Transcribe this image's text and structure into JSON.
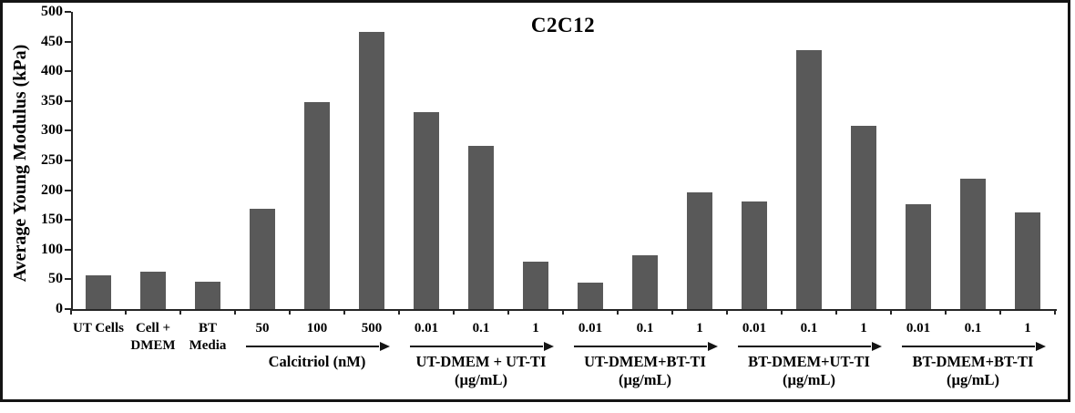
{
  "chart_data": {
    "type": "bar",
    "title": "C2C12",
    "xlabel": "",
    "ylabel": "Average Young Modulus (kPa)",
    "ylim": [
      0,
      500
    ],
    "ytick_step": 50,
    "yticks": [
      0,
      50,
      100,
      150,
      200,
      250,
      300,
      350,
      400,
      450,
      500
    ],
    "grid": false,
    "legend": null,
    "bar_color": "#595959",
    "axis_color": "#262626",
    "frame_color": "#141414",
    "singles": [
      {
        "label_lines": [
          "UT Cells"
        ],
        "value": 56
      },
      {
        "label_lines": [
          "Cell +",
          "DMEM"
        ],
        "value": 63
      },
      {
        "label_lines": [
          "BT",
          "Media"
        ],
        "value": 46
      }
    ],
    "groups": [
      {
        "name_lines": [
          "Calcitriol (nM)"
        ],
        "doses": [
          "50",
          "100",
          "500"
        ],
        "values": [
          168,
          348,
          466
        ]
      },
      {
        "name_lines": [
          "UT-DMEM + UT-TI",
          "(µg/mL)"
        ],
        "doses": [
          "0.01",
          "0.1",
          "1"
        ],
        "values": [
          331,
          274,
          79
        ]
      },
      {
        "name_lines": [
          "UT-DMEM+BT-TI",
          "(µg/mL)"
        ],
        "doses": [
          "0.01",
          "0.1",
          "1"
        ],
        "values": [
          45,
          90,
          196
        ]
      },
      {
        "name_lines": [
          "BT-DMEM+UT-TI",
          "(µg/mL)"
        ],
        "doses": [
          "0.01",
          "0.1",
          "1"
        ],
        "values": [
          181,
          435,
          308
        ]
      },
      {
        "name_lines": [
          "BT-DMEM+BT-TI",
          "(µg/mL)"
        ],
        "doses": [
          "0.01",
          "0.1",
          "1"
        ],
        "values": [
          176,
          219,
          163
        ]
      }
    ],
    "categories": [
      "UT Cells",
      "Cell + DMEM",
      "BT Media",
      "Calcitriol 50 nM",
      "Calcitriol 100 nM",
      "Calcitriol 500 nM",
      "UT-DMEM + UT-TI 0.01 µg/mL",
      "UT-DMEM + UT-TI 0.1 µg/mL",
      "UT-DMEM + UT-TI 1 µg/mL",
      "UT-DMEM+BT-TI 0.01 µg/mL",
      "UT-DMEM+BT-TI 0.1 µg/mL",
      "UT-DMEM+BT-TI 1 µg/mL",
      "BT-DMEM+UT-TI 0.01 µg/mL",
      "BT-DMEM+UT-TI 0.1 µg/mL",
      "BT-DMEM+UT-TI 1 µg/mL",
      "BT-DMEM+BT-TI 0.01 µg/mL",
      "BT-DMEM+BT-TI 0.1 µg/mL",
      "BT-DMEM+BT-TI 1 µg/mL"
    ],
    "values": [
      56,
      63,
      46,
      168,
      348,
      466,
      331,
      274,
      79,
      45,
      90,
      196,
      181,
      435,
      308,
      176,
      219,
      163
    ]
  }
}
